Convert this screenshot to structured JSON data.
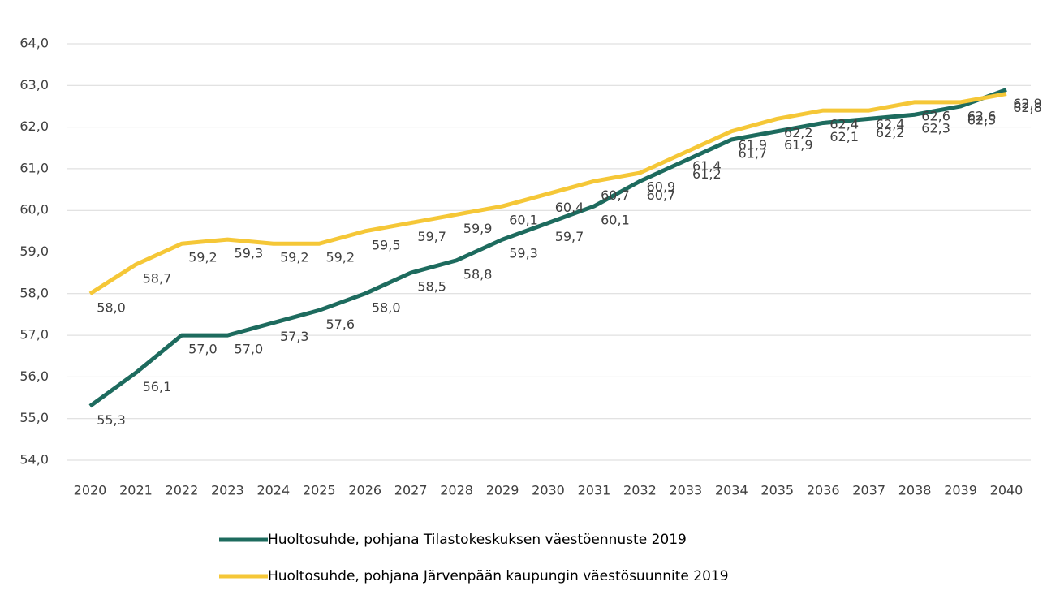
{
  "chart_data": {
    "type": "line",
    "categories": [
      "2020",
      "2021",
      "2022",
      "2023",
      "2024",
      "2025",
      "2026",
      "2027",
      "2028",
      "2029",
      "2030",
      "2031",
      "2032",
      "2033",
      "2034",
      "2035",
      "2036",
      "2037",
      "2038",
      "2039",
      "2040"
    ],
    "series": [
      {
        "name": "Huoltosuhde, pohjana Tilastokeskuksen väestöennuste 2019",
        "color": "#1d6b5e",
        "values": [
          55.3,
          56.1,
          57.0,
          57.0,
          57.3,
          57.6,
          58.0,
          58.5,
          58.8,
          59.3,
          59.7,
          60.1,
          60.7,
          61.2,
          61.7,
          61.9,
          62.1,
          62.2,
          62.3,
          62.5,
          62.9
        ],
        "value_labels": [
          "55,3",
          "56,1",
          "57,0",
          "57,0",
          "57,3",
          "57,6",
          "58,0",
          "58,5",
          "58,8",
          "59,3",
          "59,7",
          "60,1",
          "60,7",
          "61,2",
          "61,7",
          "61,9",
          "62,1",
          "62,2",
          "62,3",
          "62,5",
          "62,9"
        ]
      },
      {
        "name": "Huoltosuhde, pohjana Järvenpään kaupungin väestösuunnite 2019",
        "color": "#f5c737",
        "values": [
          58.0,
          58.7,
          59.2,
          59.3,
          59.2,
          59.2,
          59.5,
          59.7,
          59.9,
          60.1,
          60.4,
          60.7,
          60.9,
          61.4,
          61.9,
          62.2,
          62.4,
          62.4,
          62.6,
          62.6,
          62.8
        ],
        "value_labels": [
          "58,0",
          "58,7",
          "59,2",
          "59,3",
          "59,2",
          "59,2",
          "59,5",
          "59,7",
          "59,9",
          "60,1",
          "60,4",
          "60,7",
          "60,9",
          "61,4",
          "61,9",
          "62,2",
          "62,4",
          "62,4",
          "62,6",
          "62,6",
          "62,8"
        ]
      }
    ],
    "ylim": [
      54,
      64
    ],
    "yticks": [
      {
        "value": 54,
        "label": "54,0"
      },
      {
        "value": 55,
        "label": "55,0"
      },
      {
        "value": 56,
        "label": "56,0"
      },
      {
        "value": 57,
        "label": "57,0"
      },
      {
        "value": 58,
        "label": "58,0"
      },
      {
        "value": 59,
        "label": "59,0"
      },
      {
        "value": 60,
        "label": "60,0"
      },
      {
        "value": 61,
        "label": "61,0"
      },
      {
        "value": 62,
        "label": "62,0"
      },
      {
        "value": 63,
        "label": "63,0"
      },
      {
        "value": 64,
        "label": "64,0"
      }
    ],
    "grid": true,
    "legend": "bottom"
  }
}
